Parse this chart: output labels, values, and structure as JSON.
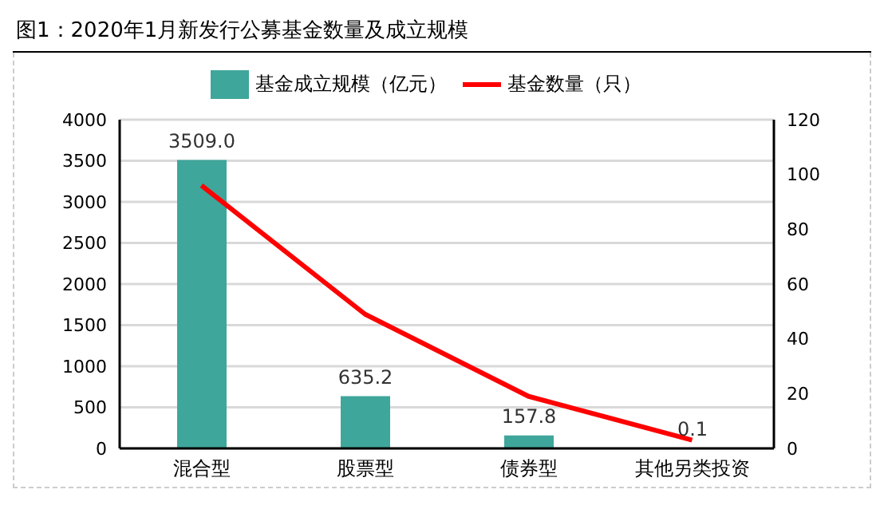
{
  "chart_data": {
    "type": "bar",
    "title": "图1：2020年1月新发行公募基金数量及成立规模",
    "categories": [
      "混合型",
      "股票型",
      "债券型",
      "其他另类投资"
    ],
    "series": [
      {
        "name": "基金成立规模（亿元）",
        "color": "#3fa69b",
        "values": [
          3509.0,
          635.2,
          157.8,
          0.1
        ],
        "value_labels": [
          "3509.0",
          "635.2",
          "157.8",
          "0.1"
        ]
      },
      {
        "name": "基金数量（只）",
        "type": "line",
        "axis": "y2",
        "color": "#ff0000",
        "values": [
          96,
          49,
          19,
          3
        ]
      }
    ],
    "ylim": [
      0,
      4000
    ],
    "yticks": [
      0,
      500,
      1000,
      1500,
      2000,
      2500,
      3000,
      3500,
      4000
    ],
    "y2lim": [
      0,
      120
    ],
    "y2ticks": [
      0,
      20,
      40,
      60,
      80,
      100,
      120
    ],
    "grid": "y",
    "legend": "top",
    "marker": "none"
  }
}
